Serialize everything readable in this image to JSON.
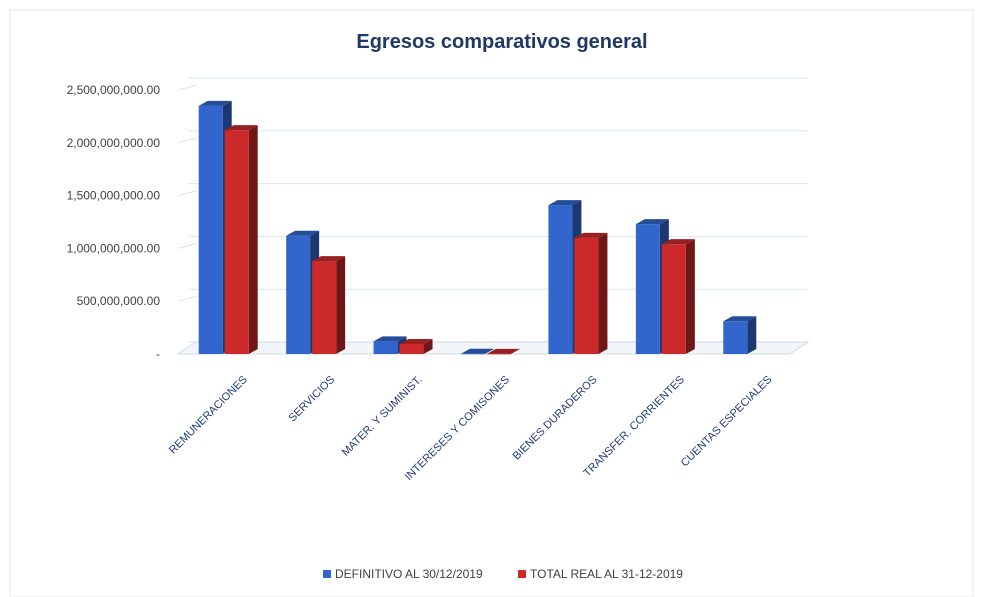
{
  "chart_data": {
    "type": "bar",
    "title": "Egresos comparativos general",
    "xlabel": "",
    "ylabel": "",
    "categories": [
      "REMUNERACIONES",
      "SERVICIOS",
      "MATER. Y SUMINIST.",
      "INTERESES Y COMISONES",
      "BIENES DURADEROS",
      "TRANSFER. CORRIENTES",
      "CUENTAS ESPECIALES"
    ],
    "series": [
      {
        "name": "DEFINITIVO AL 30/12/2019",
        "values": [
          2350000000,
          1120000000,
          120000000,
          2000000,
          1410000000,
          1230000000,
          310000000
        ],
        "color": "#3366cc"
      },
      {
        "name": "TOTAL REAL AL 31-12-2019",
        "values": [
          2120000000,
          880000000,
          95000000,
          1500000,
          1100000000,
          1040000000,
          0
        ],
        "color": "#cc2a2a"
      }
    ],
    "ylim": [
      0,
      2500000000
    ],
    "yticks": [
      0,
      500000000,
      1000000000,
      1500000000,
      2000000000,
      2500000000
    ],
    "ytick_labels": [
      "-",
      "500,000,000.00",
      "1,000,000,000.00",
      "1,500,000,000.00",
      "2,000,000,000.00",
      "2,500,000,000.00"
    ],
    "grid": true,
    "legend_position": "bottom",
    "style": "3d-column"
  }
}
